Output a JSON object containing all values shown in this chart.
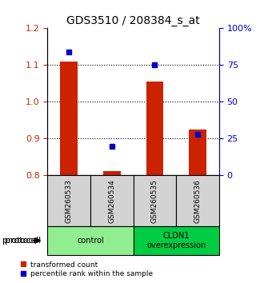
{
  "title": "GDS3510 / 208384_s_at",
  "samples": [
    "GSM260533",
    "GSM260534",
    "GSM260535",
    "GSM260536"
  ],
  "red_values": [
    1.11,
    0.812,
    1.055,
    0.925
  ],
  "blue_values": [
    84,
    20,
    75,
    28
  ],
  "baseline": 0.8,
  "left_ylim": [
    0.8,
    1.2
  ],
  "right_ylim": [
    0,
    100
  ],
  "left_yticks": [
    0.8,
    0.9,
    1.0,
    1.1,
    1.2
  ],
  "right_yticks": [
    0,
    25,
    50,
    75,
    100
  ],
  "right_yticklabels": [
    "0",
    "25",
    "50",
    "75",
    "100%"
  ],
  "dotted_lines": [
    0.9,
    1.0,
    1.1
  ],
  "groups": [
    {
      "label": "control",
      "samples": [
        0,
        1
      ],
      "color": "#90ee90"
    },
    {
      "label": "CLDN1\noverexpression",
      "samples": [
        2,
        3
      ],
      "color": "#00cc44"
    }
  ],
  "group_label": "protocol",
  "bar_color": "#cc2200",
  "dot_color": "#0000cc",
  "bar_width": 0.4,
  "bg_color": "#d3d3d3",
  "title_fontsize": 10,
  "tick_fontsize": 8,
  "legend_fontsize": 7
}
